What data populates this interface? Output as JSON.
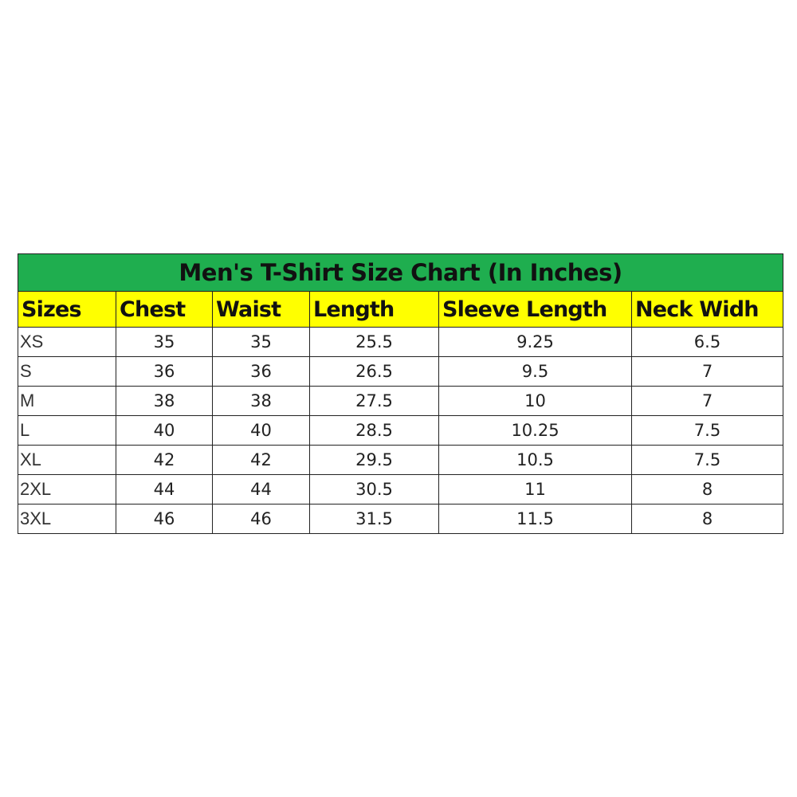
{
  "title": "Men's T-Shirt Size Chart (In Inches)",
  "colors": {
    "title_bg": "#1fae4f",
    "header_bg": "#ffff00"
  },
  "headers": [
    "Sizes",
    "Chest",
    "Waist",
    "Length",
    "Sleeve Length",
    "Neck Widh"
  ],
  "rows": [
    [
      "XS",
      "35",
      "35",
      "25.5",
      "9.25",
      "6.5"
    ],
    [
      "S",
      "36",
      "36",
      "26.5",
      "9.5",
      "7"
    ],
    [
      "M",
      "38",
      "38",
      "27.5",
      "10",
      "7"
    ],
    [
      "L",
      "40",
      "40",
      "28.5",
      "10.25",
      "7.5"
    ],
    [
      "XL",
      "42",
      "42",
      "29.5",
      "10.5",
      "7.5"
    ],
    [
      "2XL",
      "44",
      "44",
      "30.5",
      "11",
      "8"
    ],
    [
      "3XL",
      "46",
      "46",
      "31.5",
      "11.5",
      "8"
    ]
  ]
}
